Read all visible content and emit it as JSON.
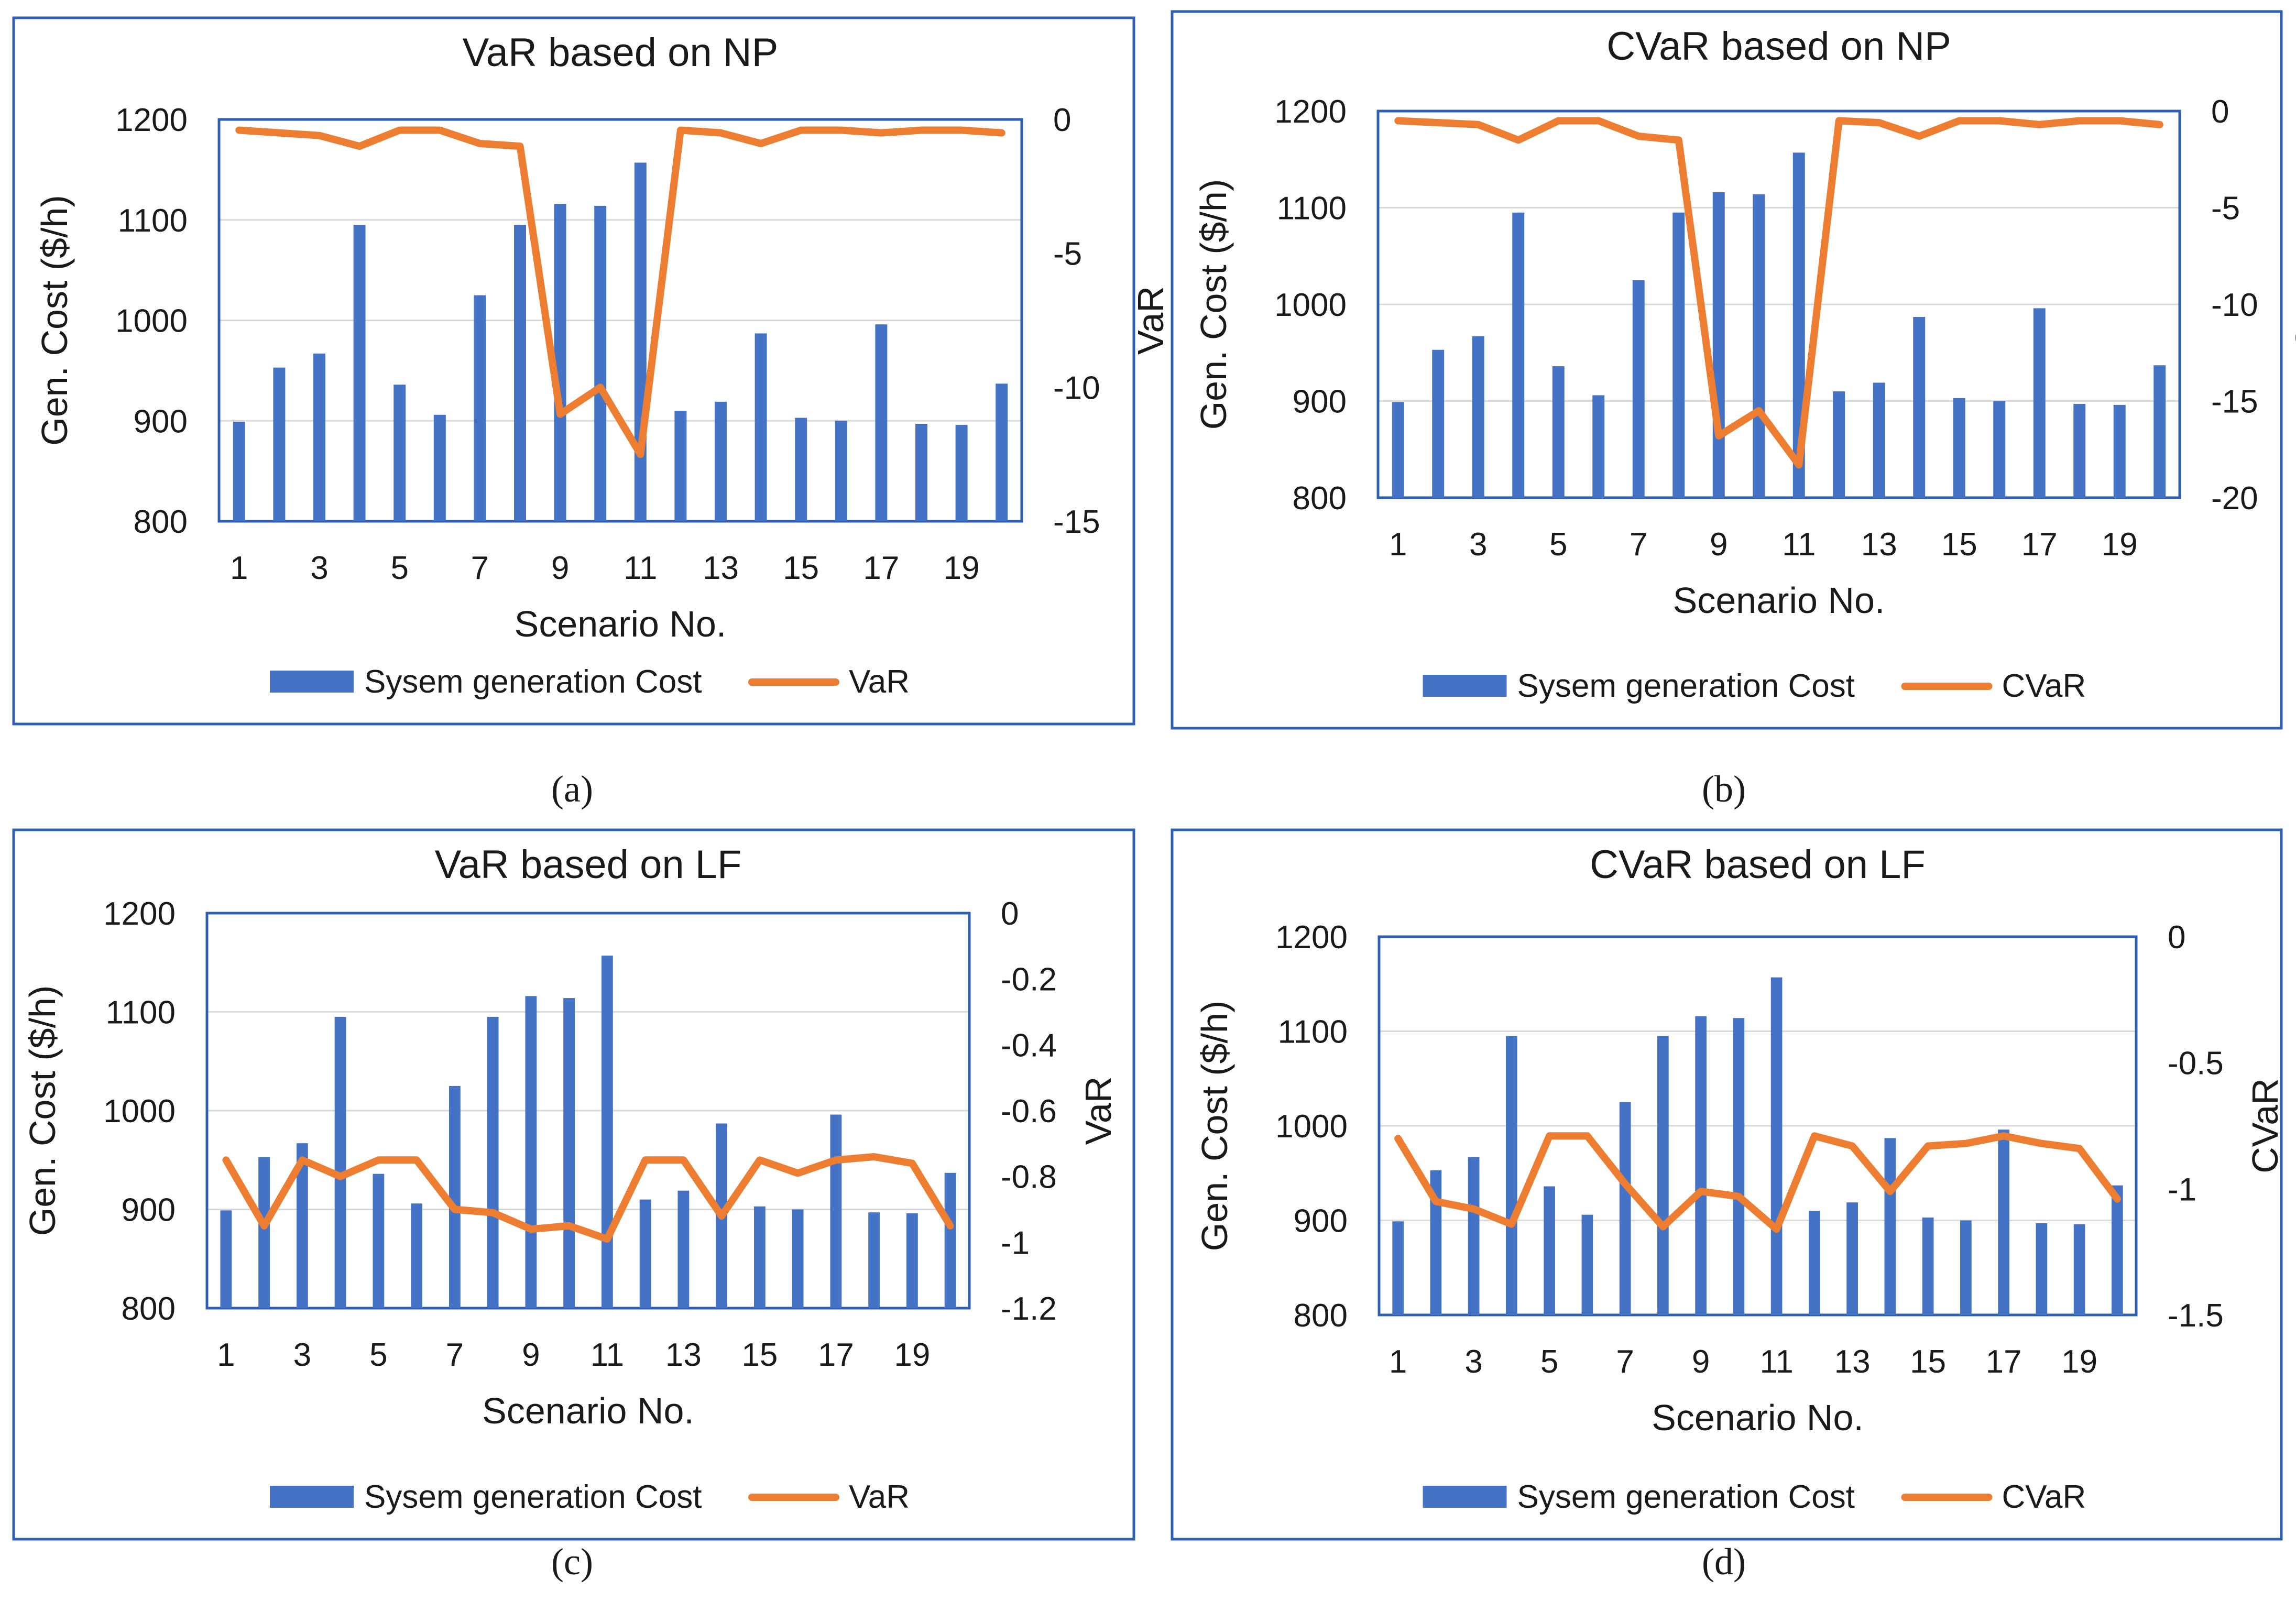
{
  "figure": {
    "captions": [
      "(a)",
      "(b)",
      "(c)",
      "(d)"
    ]
  },
  "colors": {
    "bar": "#4472C4",
    "line": "#ED7D31",
    "frame": "#2F5FB3",
    "grid": "#d9d9d9"
  },
  "chart_data": [
    {
      "type": "bar",
      "title": "VaR based on NP",
      "xlabel": "Scenario No.",
      "ylabel": "Gen. Cost ($/h)",
      "y2label": "VaR",
      "ylim": [
        800,
        1200
      ],
      "yticks": [
        "1200",
        "1100",
        "1000",
        "900",
        "800"
      ],
      "y2lim": [
        -15,
        0
      ],
      "y2ticks": [
        "0",
        "-5",
        "-10",
        "-15"
      ],
      "xticks": [
        "1",
        "3",
        "5",
        "7",
        "9",
        "11",
        "13",
        "15",
        "17",
        "19"
      ],
      "categories": [
        1,
        2,
        3,
        4,
        5,
        6,
        7,
        8,
        9,
        10,
        11,
        12,
        13,
        14,
        15,
        16,
        17,
        18,
        19,
        20
      ],
      "legend": [
        "Sysem generation Cost",
        "VaR"
      ],
      "series": [
        {
          "name": "Sysem generation Cost",
          "type": "bar",
          "axis": "left",
          "values": [
            899,
            953,
            967,
            1095,
            936,
            906,
            1025,
            1095,
            1116,
            1114,
            1157,
            910,
            919,
            987,
            903,
            900,
            996,
            897,
            896,
            937
          ]
        },
        {
          "name": "VaR",
          "type": "line",
          "axis": "right",
          "values": [
            -0.4,
            -0.5,
            -0.6,
            -1.0,
            -0.4,
            -0.4,
            -0.9,
            -1.0,
            -11.0,
            -10.0,
            -12.5,
            -0.4,
            -0.5,
            -0.9,
            -0.4,
            -0.4,
            -0.5,
            -0.4,
            -0.4,
            -0.5
          ]
        }
      ]
    },
    {
      "type": "bar",
      "title": "CVaR based on NP",
      "xlabel": "Scenario No.",
      "ylabel": "Gen. Cost ($/h)",
      "y2label": "CVaR",
      "ylim": [
        800,
        1200
      ],
      "yticks": [
        "1200",
        "1100",
        "1000",
        "900",
        "800"
      ],
      "y2lim": [
        -20,
        0
      ],
      "y2ticks": [
        "0",
        "-5",
        "-10",
        "-15",
        "-20"
      ],
      "xticks": [
        "1",
        "3",
        "5",
        "7",
        "9",
        "11",
        "13",
        "15",
        "17",
        "19"
      ],
      "categories": [
        1,
        2,
        3,
        4,
        5,
        6,
        7,
        8,
        9,
        10,
        11,
        12,
        13,
        14,
        15,
        16,
        17,
        18,
        19,
        20
      ],
      "legend": [
        "Sysem generation Cost",
        "CVaR"
      ],
      "series": [
        {
          "name": "Sysem generation Cost",
          "type": "bar",
          "axis": "left",
          "values": [
            899,
            953,
            967,
            1095,
            936,
            906,
            1025,
            1095,
            1116,
            1114,
            1157,
            910,
            919,
            987,
            903,
            900,
            996,
            897,
            896,
            937
          ]
        },
        {
          "name": "CVaR",
          "type": "line",
          "axis": "right",
          "values": [
            -0.5,
            -0.6,
            -0.7,
            -1.5,
            -0.5,
            -0.5,
            -1.3,
            -1.5,
            -16.8,
            -15.5,
            -18.3,
            -0.5,
            -0.6,
            -1.3,
            -0.5,
            -0.5,
            -0.7,
            -0.5,
            -0.5,
            -0.7
          ]
        }
      ]
    },
    {
      "type": "bar",
      "title": "VaR based on LF",
      "xlabel": "Scenario No.",
      "ylabel": "Gen. Cost ($/h)",
      "y2label": "VaR",
      "ylim": [
        800,
        1200
      ],
      "yticks": [
        "1200",
        "1100",
        "1000",
        "900",
        "800"
      ],
      "y2lim": [
        -1.2,
        0
      ],
      "y2ticks": [
        "0",
        "-0.2",
        "-0.4",
        "-0.6",
        "-0.8",
        "-1",
        "-1.2"
      ],
      "xticks": [
        "1",
        "3",
        "5",
        "7",
        "9",
        "11",
        "13",
        "15",
        "17",
        "19"
      ],
      "categories": [
        1,
        2,
        3,
        4,
        5,
        6,
        7,
        8,
        9,
        10,
        11,
        12,
        13,
        14,
        15,
        16,
        17,
        18,
        19,
        20
      ],
      "legend": [
        "Sysem generation Cost",
        "VaR"
      ],
      "series": [
        {
          "name": "Sysem generation Cost",
          "type": "bar",
          "axis": "left",
          "values": [
            899,
            953,
            967,
            1095,
            936,
            906,
            1025,
            1095,
            1116,
            1114,
            1157,
            910,
            919,
            987,
            903,
            900,
            996,
            897,
            896,
            937
          ]
        },
        {
          "name": "VaR",
          "type": "line",
          "axis": "right",
          "values": [
            -0.75,
            -0.95,
            -0.75,
            -0.8,
            -0.75,
            -0.75,
            -0.9,
            -0.91,
            -0.96,
            -0.95,
            -0.99,
            -0.75,
            -0.75,
            -0.92,
            -0.75,
            -0.79,
            -0.75,
            -0.74,
            -0.76,
            -0.95
          ]
        }
      ]
    },
    {
      "type": "bar",
      "title": "CVaR based on LF",
      "xlabel": "Scenario No.",
      "ylabel": "Gen. Cost ($/h)",
      "y2label": "CVaR",
      "ylim": [
        800,
        1200
      ],
      "yticks": [
        "1200",
        "1100",
        "1000",
        "900",
        "800"
      ],
      "y2lim": [
        -1.5,
        0
      ],
      "y2ticks": [
        "0",
        "-0.5",
        "-1",
        "-1.5"
      ],
      "xticks": [
        "1",
        "3",
        "5",
        "7",
        "9",
        "11",
        "13",
        "15",
        "17",
        "19"
      ],
      "categories": [
        1,
        2,
        3,
        4,
        5,
        6,
        7,
        8,
        9,
        10,
        11,
        12,
        13,
        14,
        15,
        16,
        17,
        18,
        19,
        20
      ],
      "legend": [
        "Sysem generation Cost",
        "CVaR"
      ],
      "series": [
        {
          "name": "Sysem generation Cost",
          "type": "bar",
          "axis": "left",
          "values": [
            899,
            953,
            967,
            1095,
            936,
            906,
            1025,
            1095,
            1116,
            1114,
            1157,
            910,
            919,
            987,
            903,
            900,
            996,
            897,
            896,
            937
          ]
        },
        {
          "name": "CVaR",
          "type": "line",
          "axis": "right",
          "values": [
            -0.8,
            -1.05,
            -1.08,
            -1.14,
            -0.79,
            -0.79,
            -0.98,
            -1.15,
            -1.01,
            -1.03,
            -1.16,
            -0.79,
            -0.83,
            -1.01,
            -0.83,
            -0.82,
            -0.79,
            -0.82,
            -0.84,
            -1.04
          ]
        }
      ]
    }
  ]
}
